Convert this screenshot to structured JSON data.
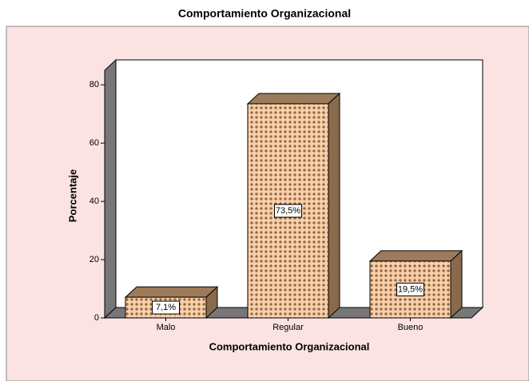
{
  "chart_data": {
    "type": "bar3d",
    "title": "Comportamiento Organizacional",
    "x_label": "Comportamiento Organizacional",
    "y_label": "Porcentaje",
    "categories": [
      "Malo",
      "Regular",
      "Bueno"
    ],
    "values": [
      7.1,
      73.5,
      19.5
    ],
    "value_labels": [
      "7,1%",
      "73,5%",
      "19,5%"
    ],
    "color": "#f7cfa8",
    "ylim": [
      0,
      85
    ],
    "yticks": [
      0,
      20,
      40,
      60,
      80
    ]
  }
}
